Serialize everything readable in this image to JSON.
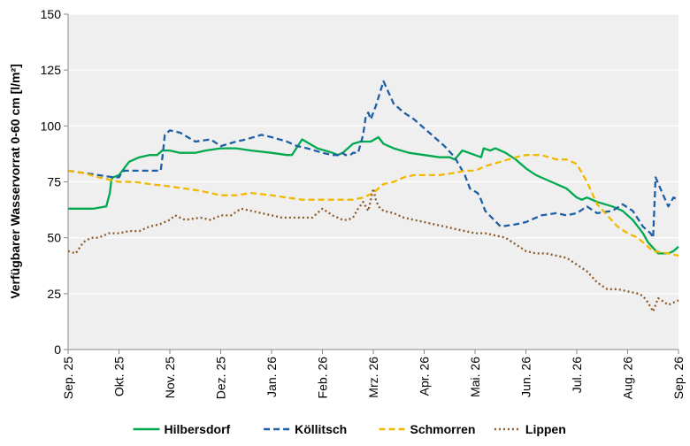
{
  "chart_data": {
    "type": "line",
    "title": "",
    "xlabel": "",
    "ylabel": "Verfügbarer Wasservorrat 0-60 cm [l/m²]",
    "ylim": [
      0,
      150
    ],
    "yticks": [
      0,
      25,
      50,
      75,
      100,
      125,
      150
    ],
    "xlim": [
      0,
      12
    ],
    "x_unit": "months since Sep. 25",
    "x_tick_labels": [
      "Sep. 25",
      "Okt. 25",
      "Nov. 25",
      "Dez. 25",
      "Jan. 26",
      "Feb. 26",
      "Mrz. 26",
      "Apr. 26",
      "Mai. 26",
      "Jun. 26",
      "Jul. 26",
      "Aug. 26",
      "Sep. 26"
    ],
    "grid": {
      "horizontal": true,
      "vertical": false
    },
    "plot_background": "#efefef",
    "legend_position": "bottom",
    "series": [
      {
        "name": "Hilbersdorf",
        "color": "#00a94f",
        "dash": "solid",
        "x": [
          0,
          0.5,
          0.75,
          0.82,
          0.85,
          0.88,
          1.0,
          1.2,
          1.4,
          1.6,
          1.75,
          1.85,
          2.0,
          2.2,
          2.5,
          2.7,
          3.0,
          3.3,
          3.6,
          4.0,
          4.3,
          4.4,
          4.6,
          4.9,
          5.2,
          5.3,
          5.4,
          5.6,
          5.75,
          5.95,
          6.1,
          6.2,
          6.4,
          6.7,
          7.0,
          7.3,
          7.5,
          7.6,
          7.75,
          8.0,
          8.12,
          8.17,
          8.3,
          8.4,
          8.6,
          8.8,
          9.0,
          9.2,
          9.4,
          9.6,
          9.8,
          10.0,
          10.1,
          10.2,
          10.4,
          10.7,
          10.9,
          11.1,
          11.3,
          11.4,
          11.6,
          11.8,
          11.9,
          12.0
        ],
        "values": [
          63,
          63,
          64,
          70,
          76,
          77,
          78,
          84,
          86,
          87,
          87,
          89,
          89,
          88,
          88,
          89,
          90,
          90,
          89,
          88,
          87,
          87,
          94,
          90,
          88,
          87,
          88,
          92,
          93,
          93,
          95,
          92,
          90,
          88,
          87,
          86,
          86,
          85,
          89,
          87,
          86,
          90,
          89,
          90,
          88,
          85,
          81,
          78,
          76,
          74,
          72,
          68,
          67,
          68,
          66,
          64,
          62,
          58,
          52,
          48,
          43,
          43,
          44,
          46
        ]
      },
      {
        "name": "Köllitsch",
        "color": "#1f5fa6",
        "dash": "dashed",
        "x": [
          0,
          0.3,
          0.6,
          0.9,
          1.0,
          1.05,
          1.1,
          1.3,
          1.6,
          1.82,
          1.86,
          1.9,
          2.0,
          2.2,
          2.5,
          2.8,
          3.0,
          3.3,
          3.5,
          3.8,
          4.0,
          4.3,
          4.5,
          4.7,
          5.0,
          5.2,
          5.35,
          5.4,
          5.45,
          5.5,
          5.55,
          5.6,
          5.7,
          5.8,
          5.85,
          5.9,
          5.95,
          6.05,
          6.2,
          6.4,
          6.6,
          6.8,
          7.0,
          7.2,
          7.4,
          7.6,
          7.8,
          7.9,
          8.05,
          8.1,
          8.2,
          8.5,
          8.8,
          9.0,
          9.3,
          9.6,
          9.8,
          10.0,
          10.2,
          10.4,
          10.7,
          10.9,
          11.1,
          11.3,
          11.45,
          11.5,
          11.55,
          11.7,
          11.8,
          11.9,
          12.0
        ],
        "values": [
          80,
          79,
          78,
          77,
          77,
          79,
          80,
          80,
          80,
          80,
          87,
          96,
          98,
          97,
          93,
          94,
          91,
          93,
          94,
          96,
          95,
          93,
          91,
          90,
          88,
          87,
          87,
          88,
          87,
          87,
          87,
          88,
          88,
          96,
          104,
          106,
          103,
          109,
          120,
          110,
          106,
          103,
          99,
          95,
          91,
          86,
          78,
          72,
          70,
          68,
          62,
          55,
          56,
          57,
          60,
          61,
          60,
          61,
          64,
          61,
          62,
          65,
          62,
          55,
          52,
          50,
          77,
          69,
          64,
          68,
          67
        ]
      },
      {
        "name": "Schmorren",
        "color": "#f2b800",
        "dash": "dashed",
        "x": [
          0,
          0.3,
          0.6,
          1.0,
          1.3,
          1.6,
          2.0,
          2.3,
          2.6,
          3.0,
          3.3,
          3.6,
          4.0,
          4.3,
          4.6,
          5.0,
          5.3,
          5.6,
          5.8,
          6.0,
          6.2,
          6.4,
          6.6,
          6.8,
          7.0,
          7.3,
          7.6,
          7.8,
          8.0,
          8.2,
          8.5,
          8.8,
          9.0,
          9.3,
          9.6,
          9.8,
          10.0,
          10.2,
          10.4,
          10.6,
          10.8,
          11.0,
          11.2,
          11.5,
          11.8,
          12.0
        ],
        "values": [
          80,
          79,
          77,
          75,
          75,
          74,
          73,
          72,
          71,
          69,
          69,
          70,
          69,
          68,
          67,
          67,
          67,
          67,
          68,
          70,
          74,
          75,
          77,
          78,
          78,
          78,
          79,
          80,
          80,
          82,
          84,
          86,
          87,
          87,
          85,
          85,
          83,
          75,
          65,
          60,
          55,
          52,
          50,
          44,
          43,
          42
        ]
      },
      {
        "name": "Lippen",
        "color": "#8b5a2b",
        "dash": "dotted",
        "x": [
          0,
          0.15,
          0.3,
          0.45,
          0.6,
          0.8,
          1.0,
          1.2,
          1.4,
          1.6,
          1.8,
          2.0,
          2.1,
          2.3,
          2.6,
          2.8,
          3.0,
          3.2,
          3.4,
          3.6,
          3.8,
          4.0,
          4.2,
          4.4,
          4.6,
          4.8,
          5.0,
          5.2,
          5.4,
          5.5,
          5.6,
          5.7,
          5.8,
          5.9,
          6.0,
          6.05,
          6.1,
          6.2,
          6.4,
          6.6,
          6.8,
          7.0,
          7.2,
          7.4,
          7.6,
          7.8,
          8.0,
          8.2,
          8.4,
          8.6,
          8.8,
          9.0,
          9.2,
          9.4,
          9.6,
          9.8,
          10.0,
          10.2,
          10.4,
          10.6,
          10.8,
          11.0,
          11.2,
          11.3,
          11.4,
          11.5,
          11.6,
          11.8,
          12.0
        ],
        "values": [
          44,
          43,
          48,
          50,
          50,
          52,
          52,
          53,
          53,
          55,
          56,
          58,
          60,
          58,
          59,
          58,
          60,
          60,
          63,
          62,
          61,
          60,
          59,
          59,
          59,
          59,
          63,
          60,
          58,
          58,
          59,
          63,
          66,
          62,
          72,
          67,
          64,
          62,
          61,
          59,
          58,
          57,
          56,
          55,
          54,
          53,
          52,
          52,
          51,
          50,
          47,
          44,
          43,
          43,
          42,
          41,
          38,
          35,
          30,
          27,
          27,
          26,
          25,
          24,
          21,
          17,
          23,
          20,
          22
        ]
      }
    ]
  }
}
